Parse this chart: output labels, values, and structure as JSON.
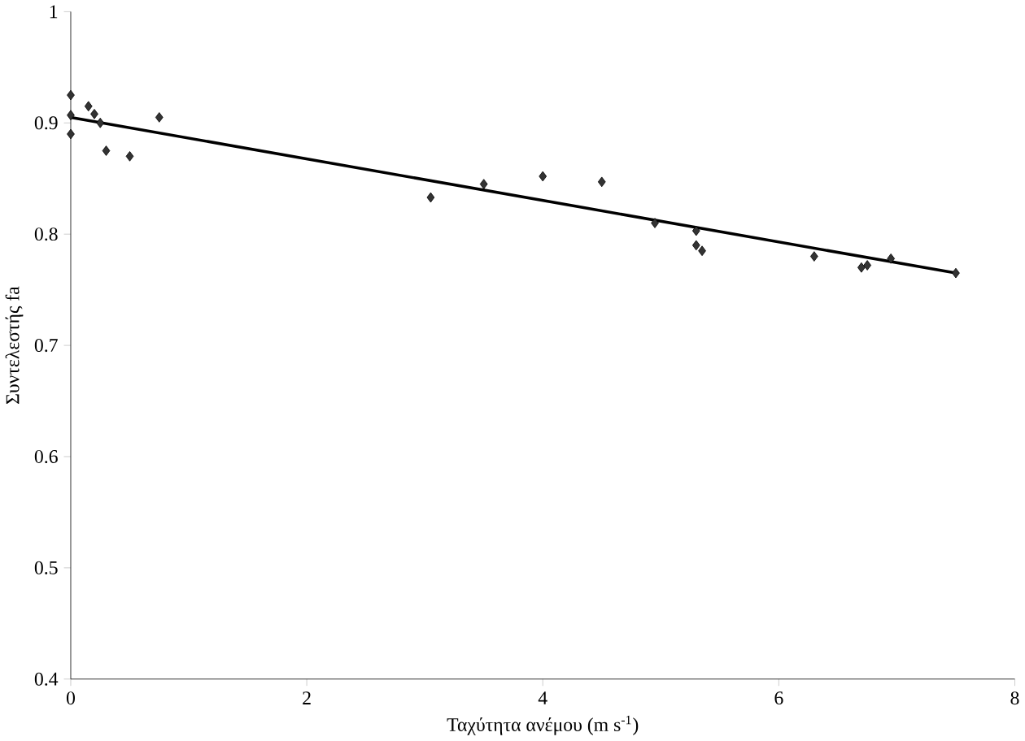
{
  "chart_data": {
    "type": "scatter",
    "xlabel": "Ταχύτητα ανέμου (m s$^{-1}$)",
    "ylabel": "Συντελεστής fa",
    "xlim": [
      0,
      8
    ],
    "ylim": [
      0.4,
      1
    ],
    "xticks": [
      0,
      2,
      4,
      6,
      8
    ],
    "yticks": [
      0.4,
      0.5,
      0.6,
      0.7,
      0.8,
      0.9,
      1
    ],
    "grid": false,
    "series": [
      {
        "marker": "diamond",
        "color": "#333333",
        "x": [
          0,
          0,
          0,
          0.15,
          0.2,
          0.25,
          0.3,
          0.5,
          0.75,
          3.05,
          3.5,
          4.0,
          4.5,
          4.95,
          5.3,
          5.3,
          5.35,
          6.3,
          6.7,
          6.75,
          6.95,
          7.5
        ],
        "values": [
          0.925,
          0.907,
          0.89,
          0.915,
          0.908,
          0.9,
          0.875,
          0.87,
          0.905,
          0.833,
          0.845,
          0.852,
          0.847,
          0.81,
          0.803,
          0.79,
          0.785,
          0.78,
          0.77,
          0.772,
          0.778,
          0.765
        ]
      },
      {
        "type": "line",
        "marker": "none",
        "color": "#000000",
        "x": [
          0,
          7.5
        ],
        "values": [
          0.905,
          0.765
        ]
      }
    ]
  }
}
